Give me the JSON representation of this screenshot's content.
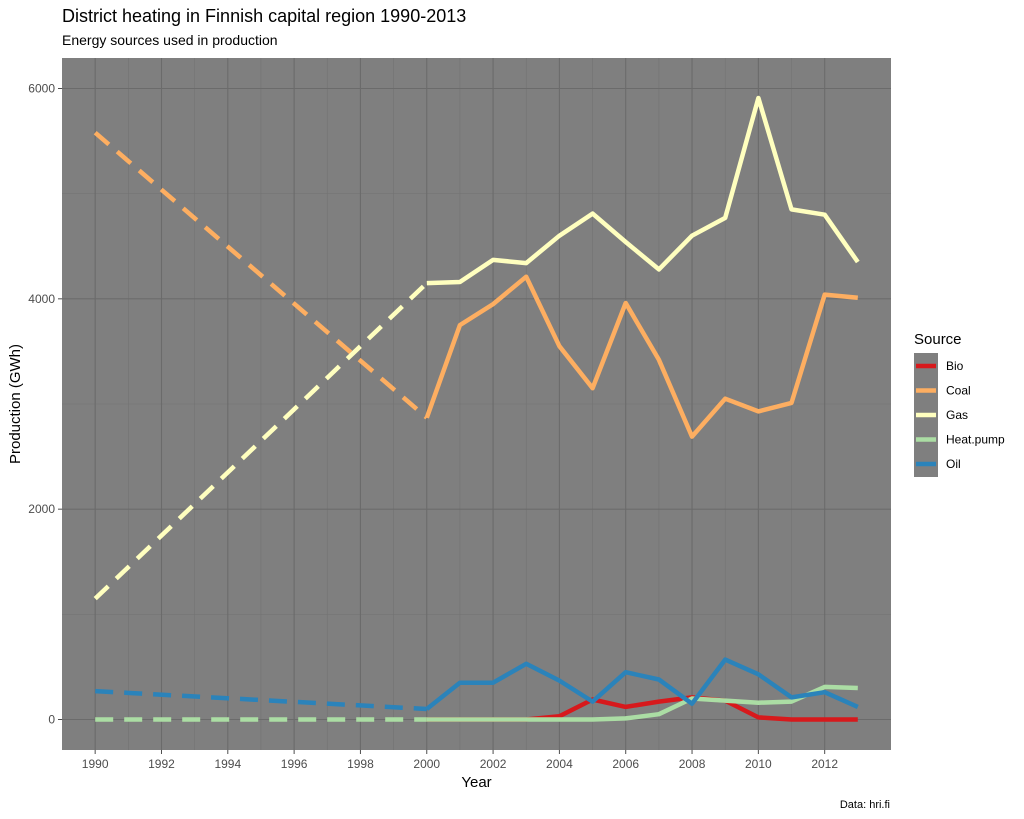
{
  "chart_data": {
    "type": "line",
    "title": "District heating in Finnish capital region 1990-2013",
    "subtitle": "Energy sources used in production",
    "xlabel": "Year",
    "ylabel": "Production (GWh)",
    "caption": "Data: hri.fi",
    "xlim": [
      1989.0,
      2014.0
    ],
    "ylim": [
      -290,
      6290
    ],
    "x_ticks": [
      1990,
      1992,
      1994,
      1996,
      1998,
      2000,
      2002,
      2004,
      2006,
      2008,
      2010,
      2012
    ],
    "y_ticks": [
      0,
      2000,
      4000,
      6000
    ],
    "grid": true,
    "legend_title": "Source",
    "legend_position": "right",
    "series": [
      {
        "name": "Bio",
        "color": "#d7191c",
        "dashed": [],
        "solid": [
          [
            2000,
            0
          ],
          [
            2001,
            0
          ],
          [
            2002,
            0
          ],
          [
            2003,
            0
          ],
          [
            2004,
            30
          ],
          [
            2005,
            190
          ],
          [
            2006,
            120
          ],
          [
            2007,
            170
          ],
          [
            2008,
            210
          ],
          [
            2009,
            180
          ],
          [
            2010,
            20
          ],
          [
            2011,
            0
          ],
          [
            2012,
            0
          ],
          [
            2013,
            0
          ]
        ]
      },
      {
        "name": "Coal",
        "color": "#fdae61",
        "dashed": [
          [
            1990,
            5580
          ],
          [
            2000,
            2870
          ]
        ],
        "solid": [
          [
            2000,
            2870
          ],
          [
            2001,
            3750
          ],
          [
            2002,
            3950
          ],
          [
            2003,
            4210
          ],
          [
            2004,
            3550
          ],
          [
            2005,
            3150
          ],
          [
            2006,
            3960
          ],
          [
            2007,
            3420
          ],
          [
            2008,
            2690
          ],
          [
            2009,
            3050
          ],
          [
            2010,
            2930
          ],
          [
            2011,
            3010
          ],
          [
            2012,
            4040
          ],
          [
            2013,
            4010
          ]
        ]
      },
      {
        "name": "Gas",
        "color": "#ffffbf",
        "dashed": [
          [
            1990,
            1150
          ],
          [
            2000,
            4150
          ]
        ],
        "solid": [
          [
            2000,
            4150
          ],
          [
            2001,
            4160
          ],
          [
            2002,
            4370
          ],
          [
            2003,
            4340
          ],
          [
            2004,
            4600
          ],
          [
            2005,
            4810
          ],
          [
            2006,
            4540
          ],
          [
            2007,
            4280
          ],
          [
            2008,
            4600
          ],
          [
            2009,
            4770
          ],
          [
            2010,
            5910
          ],
          [
            2011,
            4850
          ],
          [
            2012,
            4800
          ],
          [
            2013,
            4350
          ]
        ]
      },
      {
        "name": "Heat.pump",
        "color": "#abdda4",
        "dashed": [
          [
            1990,
            0
          ],
          [
            2000,
            0
          ]
        ],
        "solid": [
          [
            2000,
            0
          ],
          [
            2001,
            0
          ],
          [
            2002,
            0
          ],
          [
            2003,
            0
          ],
          [
            2004,
            0
          ],
          [
            2005,
            0
          ],
          [
            2006,
            10
          ],
          [
            2007,
            50
          ],
          [
            2008,
            200
          ],
          [
            2009,
            180
          ],
          [
            2010,
            160
          ],
          [
            2011,
            170
          ],
          [
            2012,
            310
          ],
          [
            2013,
            300
          ]
        ]
      },
      {
        "name": "Oil",
        "color": "#2b83ba",
        "dashed": [
          [
            1990,
            270
          ],
          [
            2000,
            100
          ]
        ],
        "solid": [
          [
            2000,
            100
          ],
          [
            2001,
            350
          ],
          [
            2002,
            350
          ],
          [
            2003,
            530
          ],
          [
            2004,
            370
          ],
          [
            2005,
            170
          ],
          [
            2006,
            450
          ],
          [
            2007,
            380
          ],
          [
            2008,
            150
          ],
          [
            2009,
            570
          ],
          [
            2010,
            430
          ],
          [
            2011,
            210
          ],
          [
            2012,
            260
          ],
          [
            2013,
            120
          ]
        ]
      }
    ]
  }
}
